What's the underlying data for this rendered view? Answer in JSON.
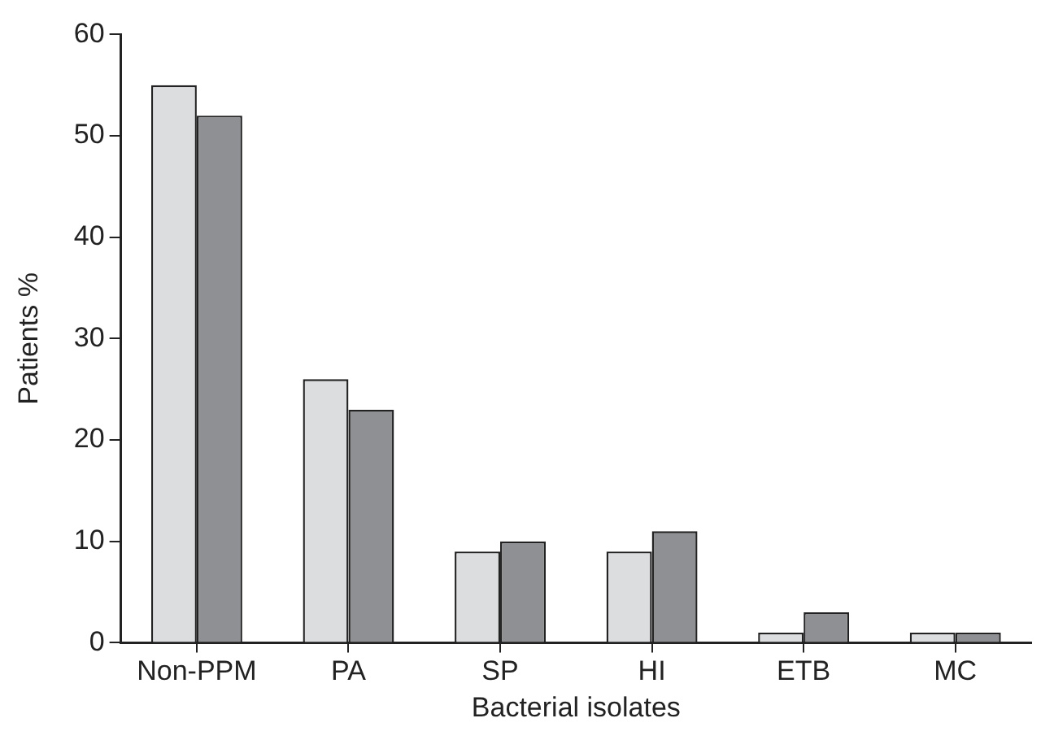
{
  "chart_data": {
    "type": "bar",
    "xlabel": "Bacterial isolates",
    "ylabel": "Patients %",
    "categories": [
      "Non-PPM",
      "PA",
      "SP",
      "HI",
      "ETB",
      "MC"
    ],
    "series": [
      {
        "color": "#dcdddf",
        "values": [
          55,
          26,
          9,
          9,
          1,
          1
        ]
      },
      {
        "color": "#8f9094",
        "values": [
          52,
          23,
          10,
          11,
          3,
          1
        ]
      }
    ],
    "ylim": [
      0,
      60
    ],
    "yticks": [
      0,
      10,
      20,
      30,
      40,
      50,
      60
    ],
    "grid": false,
    "legend": false
  }
}
